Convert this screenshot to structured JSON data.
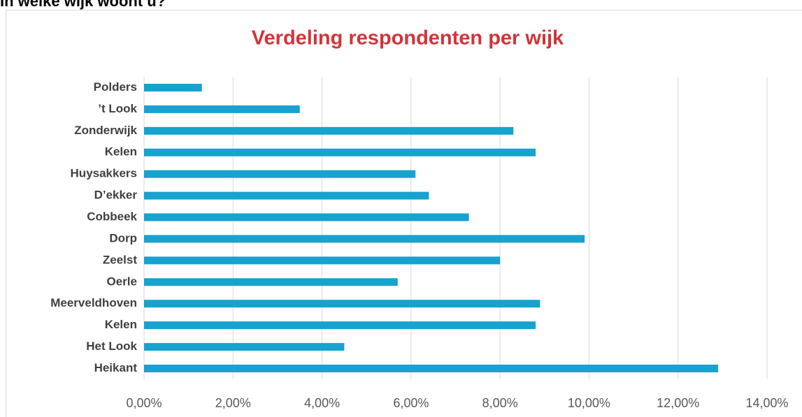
{
  "header": {
    "question": "In welke wijk woont u?"
  },
  "chart_data": {
    "type": "hbar",
    "title": "Verdeling respondenten per wijk",
    "categories": [
      "Polders",
      "’t Look",
      "Zonderwijk",
      "Kelen",
      "Huysakkers",
      "D’ekker",
      "Cobbeek",
      "Dorp",
      "Zeelst",
      "Oerle",
      "Meerveldhoven",
      "Kelen",
      "Het Look",
      "Heikant"
    ],
    "values": [
      1.3,
      3.5,
      8.3,
      8.8,
      6.1,
      6.4,
      7.3,
      9.9,
      8.0,
      5.7,
      8.9,
      8.8,
      4.5,
      12.9
    ],
    "color": "#17a2cf",
    "xlim": [
      0,
      14
    ],
    "xticks": [
      {
        "value": 0,
        "label": "0,00%"
      },
      {
        "value": 2,
        "label": "2,00%"
      },
      {
        "value": 4,
        "label": "4,00%"
      },
      {
        "value": 6,
        "label": "6,00%"
      },
      {
        "value": 8,
        "label": "8,00%"
      },
      {
        "value": 10,
        "label": "10,00%"
      },
      {
        "value": 12,
        "label": "12,00%"
      },
      {
        "value": 14,
        "label": "14,00%"
      }
    ],
    "grid": true
  }
}
